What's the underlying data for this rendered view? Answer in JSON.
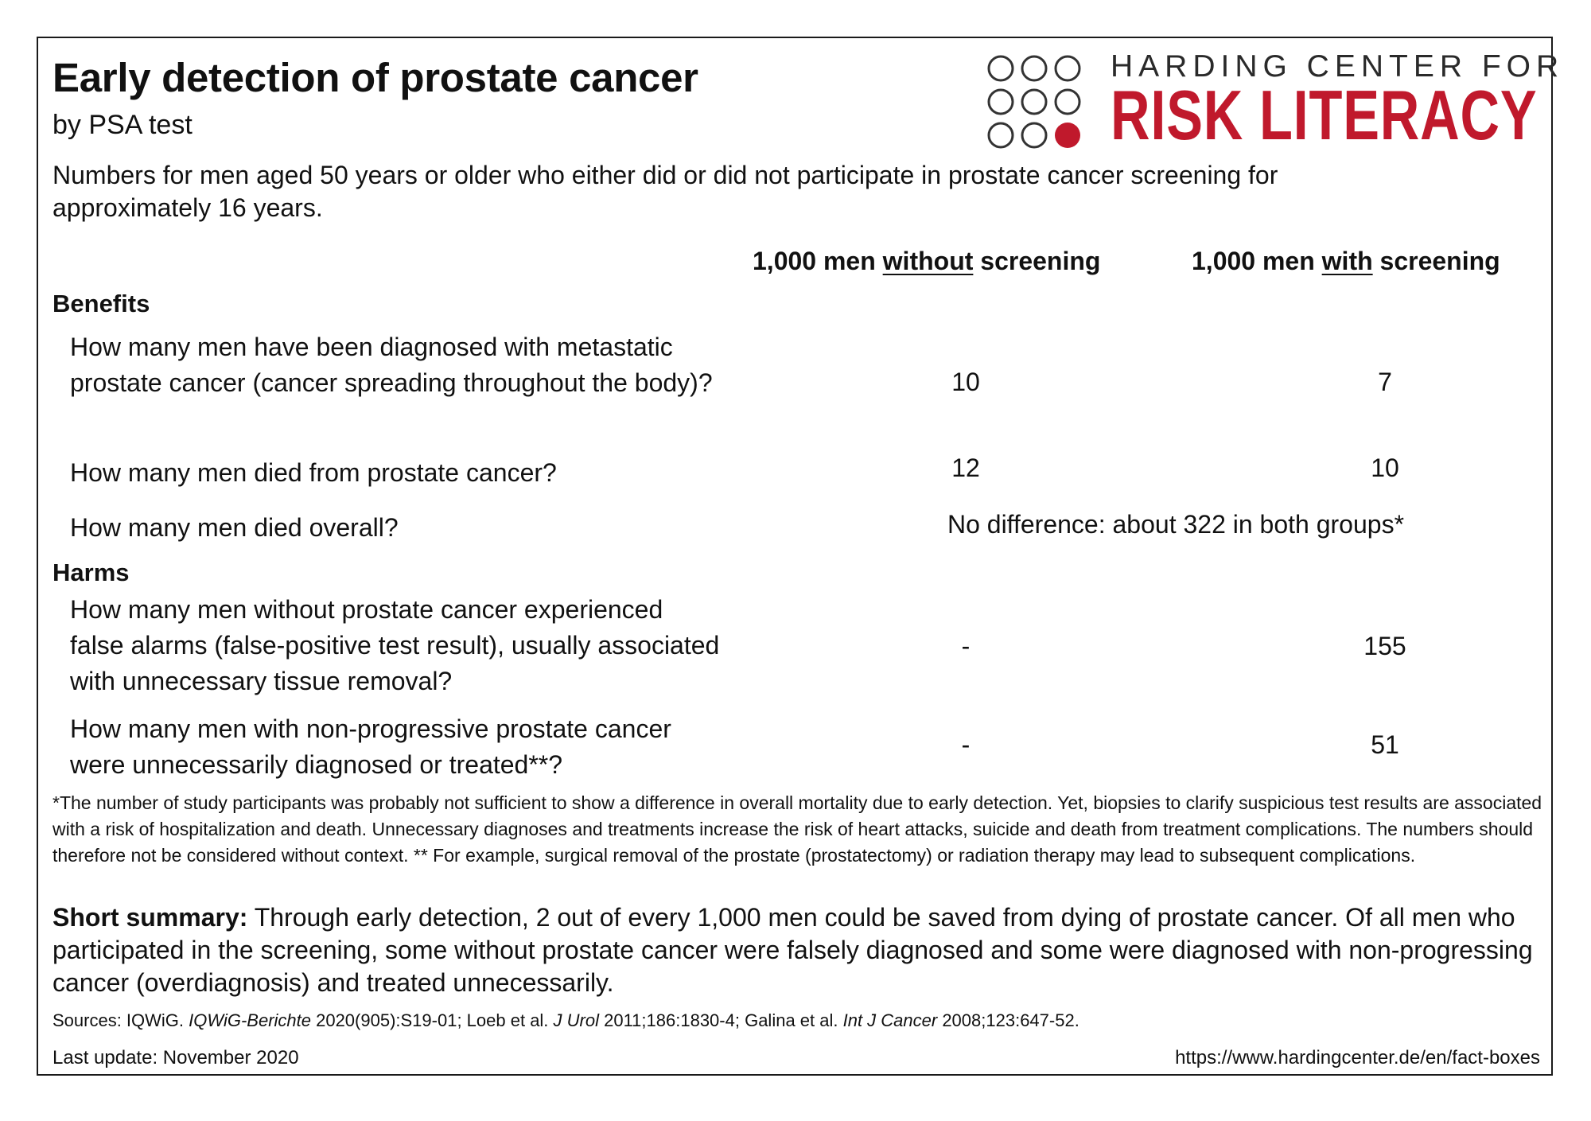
{
  "header": {
    "title": "Early detection of prostate cancer",
    "subtitle": "by PSA test",
    "intro": "Numbers for men aged 50 years or older who either did or did not participate in prostate cancer screening for approximately 16 years."
  },
  "logo": {
    "line1": "HARDING CENTER FOR",
    "line2": "RISK LITERACY",
    "color": "#c0192c"
  },
  "columns": {
    "without": {
      "pre": "1,000 men ",
      "em": "without",
      "post": " screening"
    },
    "with": {
      "pre": "1,000 men ",
      "em": "with",
      "post": " screening"
    }
  },
  "benefits": {
    "heading": "Benefits",
    "rows": [
      {
        "question": "How many men have been diagnosed with metastatic prostate cancer (cancer spreading throughout the body)?",
        "without": "10",
        "with": "7"
      },
      {
        "question": "How many men died from prostate cancer?",
        "without": "12",
        "with": "10"
      },
      {
        "question": "How many men died overall?",
        "combined": "No difference: about 322 in both groups*"
      }
    ]
  },
  "harms": {
    "heading": "Harms",
    "rows": [
      {
        "question": "How many men without prostate cancer experienced false alarms (false-positive test result), usually associated with unnecessary tissue removal?",
        "without": "-",
        "with": "155"
      },
      {
        "question": "How many men with non-progressive prostate cancer were unnecessarily diagnosed or treated**?",
        "without": "-",
        "with": "51"
      }
    ]
  },
  "footnote": "*The number of study participants was probably not sufficient to show a difference in overall mortality due to early detection. Yet, biopsies to clarify suspicious test results are associated with a risk of hospitalization and death. Unnecessary diagnoses and treatments increase the risk of heart attacks, suicide and death from treatment complications. The numbers should therefore not be considered without context. ** For example, surgical removal of the prostate (prostatectomy) or radiation therapy may lead to subsequent complications.",
  "summary": {
    "label": "Short summary:",
    "text": " Through early detection, 2 out of every 1,000 men could be saved from dying of prostate cancer. Of all men who participated in the screening, some without prostate cancer were falsely diagnosed and some were diagnosed with non-progressing cancer (overdiagnosis) and treated unnecessarily."
  },
  "sources": {
    "a": "Sources: IQWiG. ",
    "b": "IQWiG-Berichte",
    "c": " 2020(905):S19-01; Loeb et al. ",
    "d": "J Urol",
    "e": " 2011;186:1830-4; Galina et al. ",
    "f": "Int J Cancer",
    "g": " 2008;123:647-52."
  },
  "footer": {
    "last_update": "Last update: November 2020",
    "url": "https://www.hardingcenter.de/en/fact-boxes"
  }
}
